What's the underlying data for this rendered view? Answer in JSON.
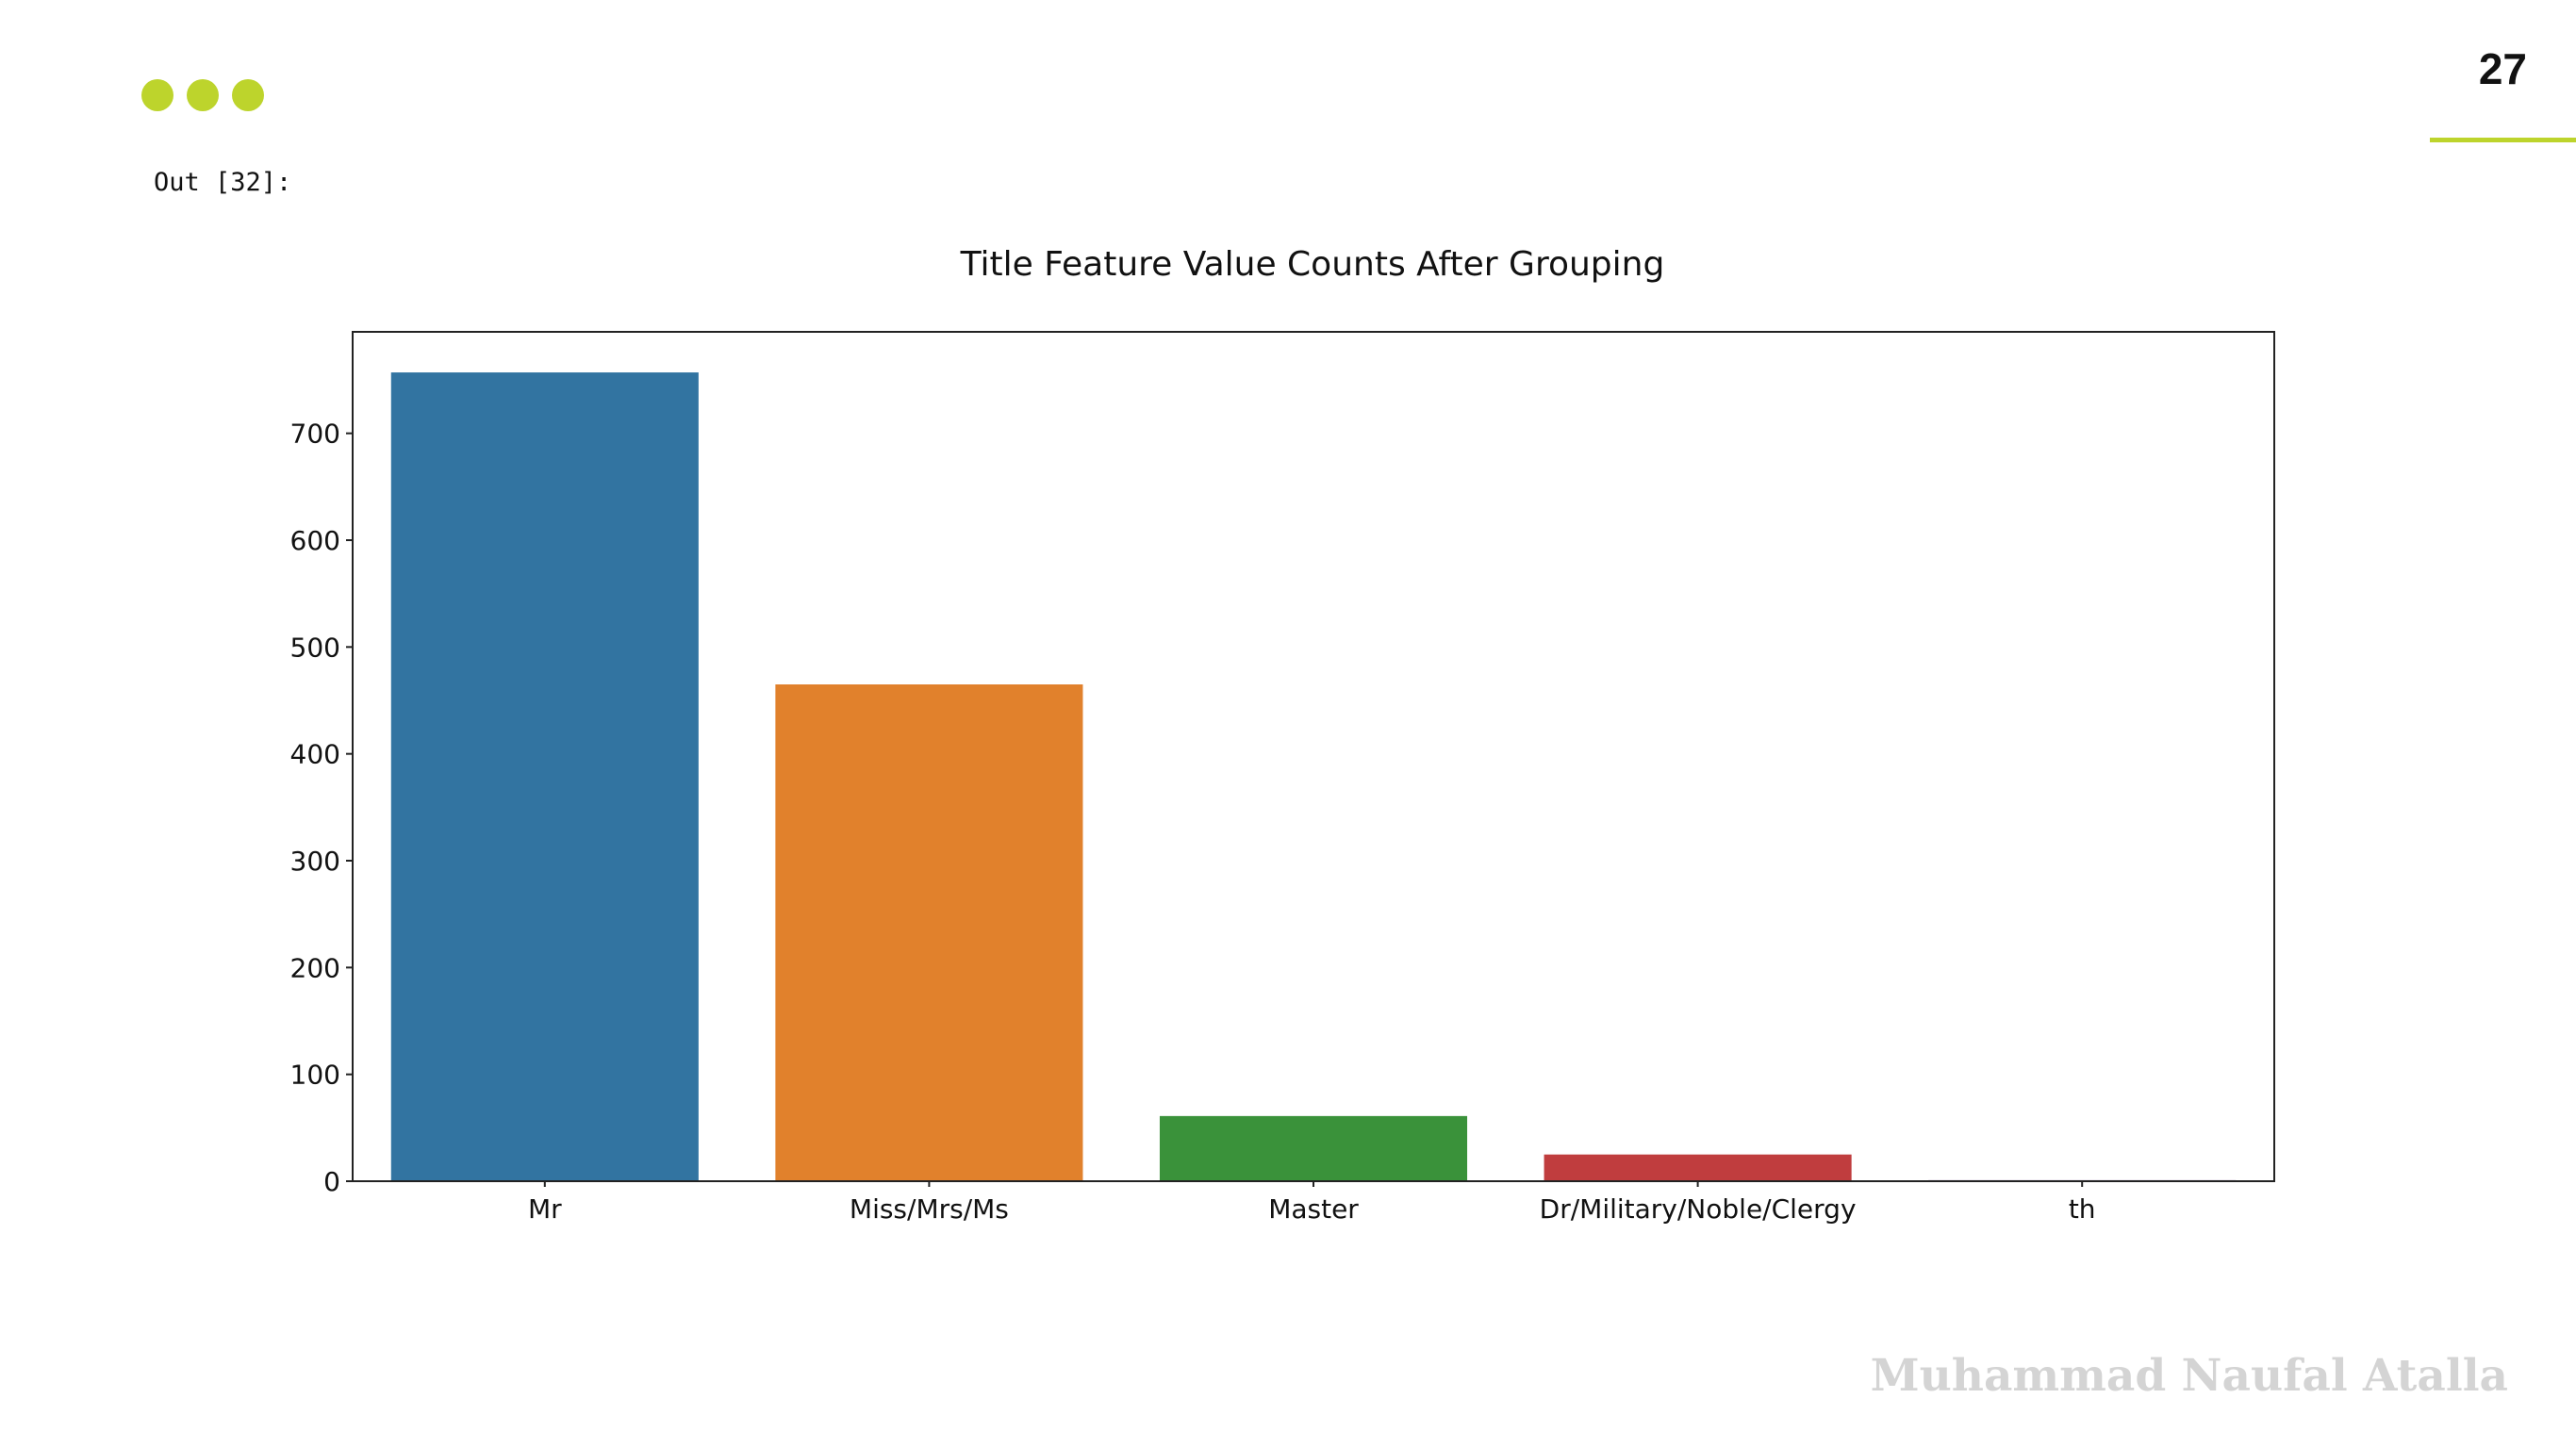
{
  "slide": {
    "page_number": "27",
    "accent_color": "#bdd42c",
    "dots": [
      "dot-1",
      "dot-2",
      "dot-3"
    ],
    "output_label": "Out [32]:",
    "author_watermark": "Muhammad Naufal Atalla"
  },
  "chart_data": {
    "type": "bar",
    "title": "Title Feature Value Counts After Grouping",
    "xlabel": "",
    "ylabel": "",
    "categories": [
      "Mr",
      "Miss/Mrs/Ms",
      "Master",
      "Dr/Military/Noble/Clergy",
      "th"
    ],
    "values": [
      757,
      465,
      61,
      25,
      1
    ],
    "colors": [
      "#3274a1",
      "#e1812c",
      "#3a923a",
      "#c03d3e",
      "#9372b2"
    ],
    "ylim": [
      0,
      795
    ],
    "yticks": [
      0,
      100,
      200,
      300,
      400,
      500,
      600,
      700
    ],
    "grid": false,
    "legend": "none"
  }
}
